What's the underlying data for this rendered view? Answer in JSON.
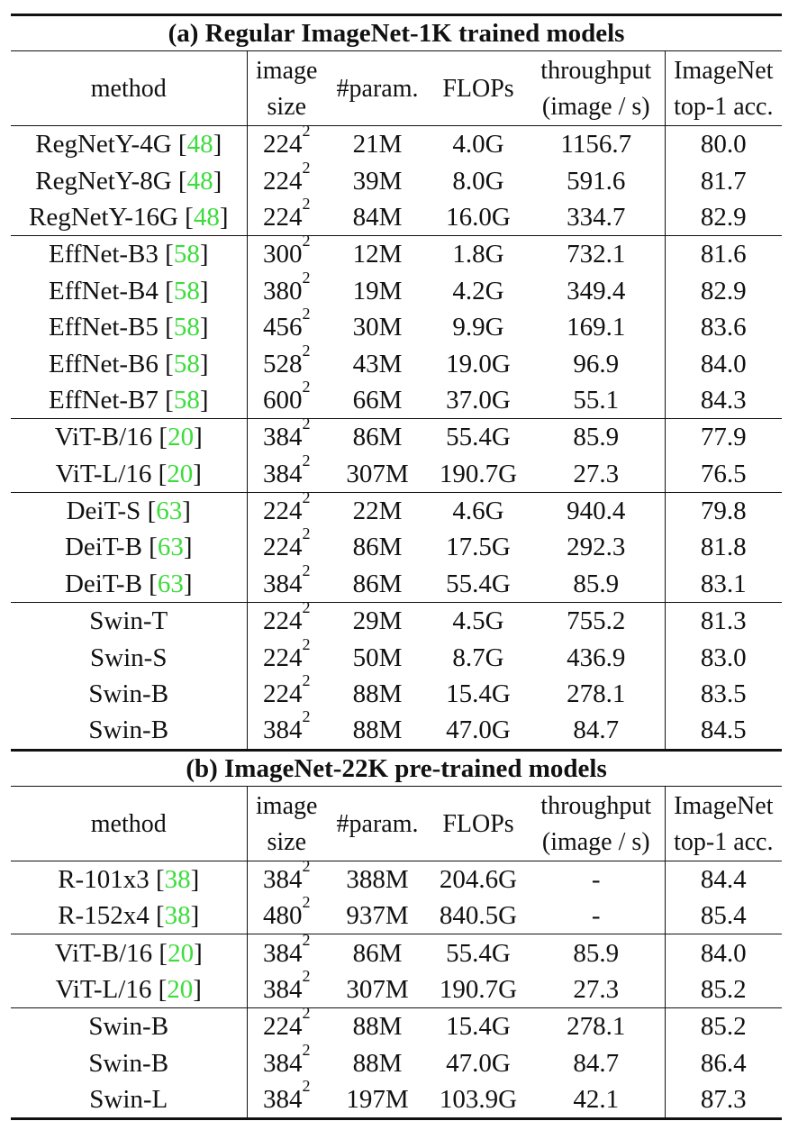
{
  "sections": [
    {
      "title": "(a) Regular ImageNet-1K trained models",
      "header": {
        "method": "method",
        "image_size": [
          "image",
          "size"
        ],
        "param": "#param.",
        "flops": "FLOPs",
        "throughput": [
          "throughput",
          "(image / s)"
        ],
        "acc": [
          "ImageNet",
          "top-1 acc."
        ]
      },
      "groups": [
        [
          {
            "name": "RegNetY-4G",
            "cite": "48",
            "size": "224",
            "param": "21M",
            "flops": "4.0G",
            "throughput": "1156.7",
            "acc": "80.0"
          },
          {
            "name": "RegNetY-8G",
            "cite": "48",
            "size": "224",
            "param": "39M",
            "flops": "8.0G",
            "throughput": "591.6",
            "acc": "81.7"
          },
          {
            "name": "RegNetY-16G",
            "cite": "48",
            "size": "224",
            "param": "84M",
            "flops": "16.0G",
            "throughput": "334.7",
            "acc": "82.9"
          }
        ],
        [
          {
            "name": "EffNet-B3",
            "cite": "58",
            "size": "300",
            "param": "12M",
            "flops": "1.8G",
            "throughput": "732.1",
            "acc": "81.6"
          },
          {
            "name": "EffNet-B4",
            "cite": "58",
            "size": "380",
            "param": "19M",
            "flops": "4.2G",
            "throughput": "349.4",
            "acc": "82.9"
          },
          {
            "name": "EffNet-B5",
            "cite": "58",
            "size": "456",
            "param": "30M",
            "flops": "9.9G",
            "throughput": "169.1",
            "acc": "83.6"
          },
          {
            "name": "EffNet-B6",
            "cite": "58",
            "size": "528",
            "param": "43M",
            "flops": "19.0G",
            "throughput": "96.9",
            "acc": "84.0"
          },
          {
            "name": "EffNet-B7",
            "cite": "58",
            "size": "600",
            "param": "66M",
            "flops": "37.0G",
            "throughput": "55.1",
            "acc": "84.3"
          }
        ],
        [
          {
            "name": "ViT-B/16",
            "cite": "20",
            "size": "384",
            "param": "86M",
            "flops": "55.4G",
            "throughput": "85.9",
            "acc": "77.9"
          },
          {
            "name": "ViT-L/16",
            "cite": "20",
            "size": "384",
            "param": "307M",
            "flops": "190.7G",
            "throughput": "27.3",
            "acc": "76.5"
          }
        ],
        [
          {
            "name": "DeiT-S",
            "cite": "63",
            "size": "224",
            "param": "22M",
            "flops": "4.6G",
            "throughput": "940.4",
            "acc": "79.8"
          },
          {
            "name": "DeiT-B",
            "cite": "63",
            "size": "224",
            "param": "86M",
            "flops": "17.5G",
            "throughput": "292.3",
            "acc": "81.8"
          },
          {
            "name": "DeiT-B",
            "cite": "63",
            "size": "384",
            "param": "86M",
            "flops": "55.4G",
            "throughput": "85.9",
            "acc": "83.1"
          }
        ],
        [
          {
            "name": "Swin-T",
            "cite": "",
            "size": "224",
            "param": "29M",
            "flops": "4.5G",
            "throughput": "755.2",
            "acc": "81.3"
          },
          {
            "name": "Swin-S",
            "cite": "",
            "size": "224",
            "param": "50M",
            "flops": "8.7G",
            "throughput": "436.9",
            "acc": "83.0"
          },
          {
            "name": "Swin-B",
            "cite": "",
            "size": "224",
            "param": "88M",
            "flops": "15.4G",
            "throughput": "278.1",
            "acc": "83.5"
          },
          {
            "name": "Swin-B",
            "cite": "",
            "size": "384",
            "param": "88M",
            "flops": "47.0G",
            "throughput": "84.7",
            "acc": "84.5"
          }
        ]
      ]
    },
    {
      "title": "(b) ImageNet-22K pre-trained models",
      "header": {
        "method": "method",
        "image_size": [
          "image",
          "size"
        ],
        "param": "#param.",
        "flops": "FLOPs",
        "throughput": [
          "throughput",
          "(image / s)"
        ],
        "acc": [
          "ImageNet",
          "top-1 acc."
        ]
      },
      "groups": [
        [
          {
            "name": "R-101x3",
            "cite": "38",
            "size": "384",
            "param": "388M",
            "flops": "204.6G",
            "throughput": "-",
            "acc": "84.4"
          },
          {
            "name": "R-152x4",
            "cite": "38",
            "size": "480",
            "param": "937M",
            "flops": "840.5G",
            "throughput": "-",
            "acc": "85.4"
          }
        ],
        [
          {
            "name": "ViT-B/16",
            "cite": "20",
            "size": "384",
            "param": "86M",
            "flops": "55.4G",
            "throughput": "85.9",
            "acc": "84.0"
          },
          {
            "name": "ViT-L/16",
            "cite": "20",
            "size": "384",
            "param": "307M",
            "flops": "190.7G",
            "throughput": "27.3",
            "acc": "85.2"
          }
        ],
        [
          {
            "name": "Swin-B",
            "cite": "",
            "size": "224",
            "param": "88M",
            "flops": "15.4G",
            "throughput": "278.1",
            "acc": "85.2"
          },
          {
            "name": "Swin-B",
            "cite": "",
            "size": "384",
            "param": "88M",
            "flops": "47.0G",
            "throughput": "84.7",
            "acc": "86.4"
          },
          {
            "name": "Swin-L",
            "cite": "",
            "size": "384",
            "param": "197M",
            "flops": "103.9G",
            "throughput": "42.1",
            "acc": "87.3"
          }
        ]
      ]
    }
  ],
  "size_exponent": "2",
  "cite_color": "#3cdc3c"
}
